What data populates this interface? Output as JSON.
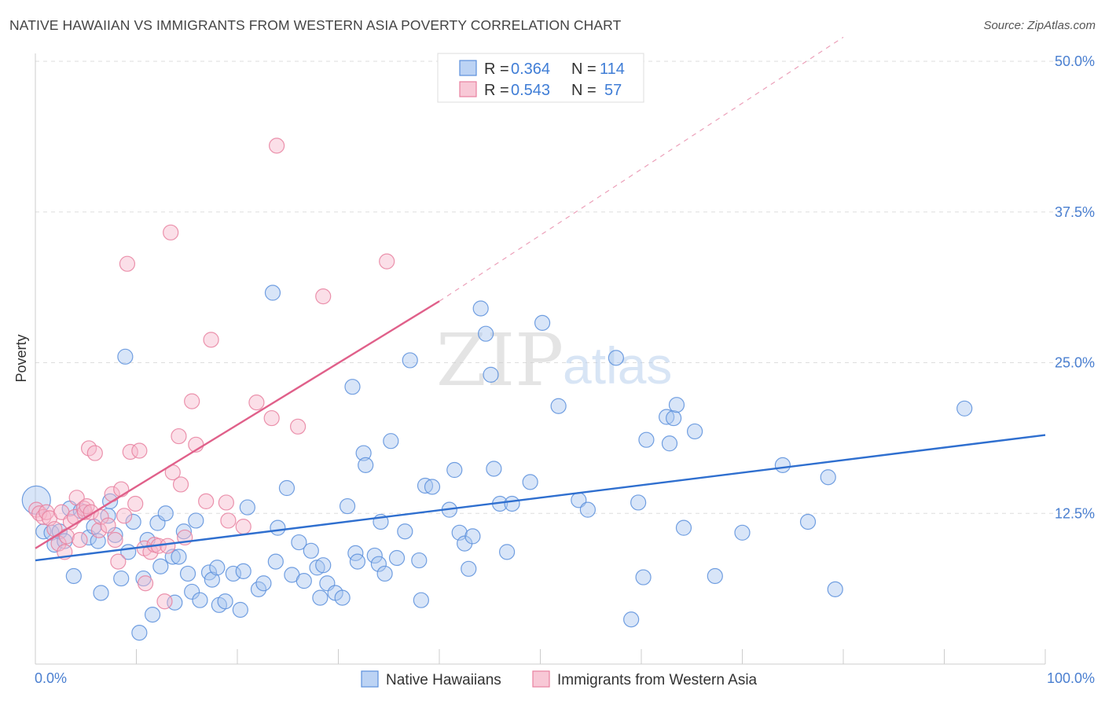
{
  "title": "NATIVE HAWAIIAN VS IMMIGRANTS FROM WESTERN ASIA POVERTY CORRELATION CHART",
  "source": "Source: ZipAtlas.com",
  "watermark": {
    "zip": "ZIP",
    "atlas": "atlas"
  },
  "colors": {
    "blue": "#5b8fdc",
    "blue_fill": "#a9c6f0",
    "blue_line": "#2f6fcf",
    "pink": "#e8809f",
    "pink_fill": "#f6b8cc",
    "pink_line": "#e0608a",
    "tick": "#4a7fd0",
    "grid": "#dddddd"
  },
  "legend": {
    "rows": [
      {
        "r_label": "R = ",
        "r_value": "0.364",
        "n_label": "N = ",
        "n_value": "114",
        "color": "blue"
      },
      {
        "r_label": "R = ",
        "r_value": "0.543",
        "n_label": "N = ",
        "n_value": "57",
        "color": "pink"
      }
    ]
  },
  "chart_data": {
    "type": "scatter",
    "title": "NATIVE HAWAIIAN VS IMMIGRANTS FROM WESTERN ASIA POVERTY CORRELATION CHART",
    "xlabel": "",
    "ylabel": "Poverty",
    "xlim": [
      0,
      100
    ],
    "ylim": [
      0,
      52
    ],
    "x_tick_labels": [
      "0.0%",
      "100.0%"
    ],
    "y_ticks": [
      12.5,
      25.0,
      37.5,
      50.0
    ],
    "y_tick_labels": [
      "12.5%",
      "25.0%",
      "37.5%",
      "50.0%"
    ],
    "grid": true,
    "legend_position": "top-center",
    "series": [
      {
        "name": "Native Hawaiians",
        "color": "blue",
        "trend": {
          "x": [
            0,
            100
          ],
          "y": [
            8.6,
            19.0
          ],
          "dashed_extension": false
        },
        "points": [
          [
            0.1,
            13.6
          ],
          [
            0.8,
            11.0
          ],
          [
            1.6,
            10.9
          ],
          [
            1.9,
            9.9
          ],
          [
            2.4,
            11.0
          ],
          [
            2.9,
            10.2
          ],
          [
            3.4,
            12.9
          ],
          [
            3.8,
            7.3
          ],
          [
            4.5,
            12.7
          ],
          [
            5.3,
            10.5
          ],
          [
            5.8,
            11.4
          ],
          [
            6.2,
            10.2
          ],
          [
            6.5,
            5.9
          ],
          [
            7.2,
            12.3
          ],
          [
            7.4,
            13.5
          ],
          [
            7.9,
            10.7
          ],
          [
            8.5,
            7.1
          ],
          [
            8.9,
            25.5
          ],
          [
            9.2,
            9.3
          ],
          [
            9.7,
            11.8
          ],
          [
            10.3,
            2.6
          ],
          [
            10.7,
            7.1
          ],
          [
            11.1,
            10.3
          ],
          [
            11.6,
            4.1
          ],
          [
            12.1,
            11.7
          ],
          [
            12.4,
            8.1
          ],
          [
            12.9,
            12.5
          ],
          [
            13.6,
            8.9
          ],
          [
            13.8,
            5.1
          ],
          [
            14.2,
            8.9
          ],
          [
            14.7,
            11.0
          ],
          [
            15.1,
            7.5
          ],
          [
            15.5,
            6.0
          ],
          [
            15.9,
            11.9
          ],
          [
            16.3,
            5.3
          ],
          [
            17.2,
            7.6
          ],
          [
            17.5,
            7.0
          ],
          [
            18.0,
            8.0
          ],
          [
            18.2,
            4.9
          ],
          [
            18.8,
            5.2
          ],
          [
            19.6,
            7.5
          ],
          [
            20.3,
            4.5
          ],
          [
            20.6,
            7.7
          ],
          [
            21.0,
            13.0
          ],
          [
            22.1,
            6.2
          ],
          [
            22.6,
            6.7
          ],
          [
            23.5,
            30.8
          ],
          [
            23.8,
            8.5
          ],
          [
            24.0,
            11.3
          ],
          [
            24.9,
            14.6
          ],
          [
            25.4,
            7.4
          ],
          [
            26.1,
            10.1
          ],
          [
            26.6,
            6.9
          ],
          [
            27.3,
            9.4
          ],
          [
            27.9,
            8.0
          ],
          [
            28.2,
            5.5
          ],
          [
            28.5,
            8.2
          ],
          [
            28.9,
            6.7
          ],
          [
            29.7,
            5.9
          ],
          [
            30.4,
            5.5
          ],
          [
            30.9,
            13.1
          ],
          [
            31.4,
            23.0
          ],
          [
            31.7,
            9.2
          ],
          [
            31.9,
            8.5
          ],
          [
            32.5,
            17.5
          ],
          [
            32.7,
            16.5
          ],
          [
            33.6,
            9.0
          ],
          [
            34.0,
            8.3
          ],
          [
            34.2,
            11.8
          ],
          [
            34.6,
            7.5
          ],
          [
            35.2,
            18.5
          ],
          [
            35.8,
            8.8
          ],
          [
            36.6,
            11.0
          ],
          [
            37.1,
            25.2
          ],
          [
            38.0,
            8.6
          ],
          [
            38.2,
            5.3
          ],
          [
            38.6,
            14.8
          ],
          [
            39.3,
            14.7
          ],
          [
            41.0,
            12.8
          ],
          [
            41.5,
            16.1
          ],
          [
            42.0,
            10.9
          ],
          [
            42.5,
            10.0
          ],
          [
            42.9,
            7.9
          ],
          [
            43.3,
            10.6
          ],
          [
            44.1,
            29.5
          ],
          [
            44.6,
            27.4
          ],
          [
            45.1,
            24.0
          ],
          [
            45.4,
            16.2
          ],
          [
            46.0,
            13.3
          ],
          [
            46.7,
            9.3
          ],
          [
            47.2,
            13.3
          ],
          [
            49.0,
            15.1
          ],
          [
            50.2,
            28.3
          ],
          [
            51.8,
            21.4
          ],
          [
            53.8,
            13.6
          ],
          [
            54.7,
            12.8
          ],
          [
            57.5,
            25.4
          ],
          [
            59.0,
            3.7
          ],
          [
            59.7,
            13.4
          ],
          [
            60.2,
            7.2
          ],
          [
            60.5,
            18.6
          ],
          [
            62.5,
            20.5
          ],
          [
            62.8,
            18.3
          ],
          [
            63.2,
            20.4
          ],
          [
            63.5,
            21.5
          ],
          [
            64.2,
            11.3
          ],
          [
            65.3,
            19.3
          ],
          [
            67.3,
            7.3
          ],
          [
            70.0,
            10.9
          ],
          [
            74.0,
            16.5
          ],
          [
            76.5,
            11.8
          ],
          [
            78.5,
            15.5
          ],
          [
            79.2,
            6.2
          ],
          [
            92.0,
            21.2
          ]
        ]
      },
      {
        "name": "Immigrants from Western Asia",
        "color": "pink",
        "trend": {
          "x": [
            0,
            40
          ],
          "y": [
            9.6,
            30.1
          ],
          "dashed_extension": true,
          "extension_to": [
            80,
            52
          ]
        },
        "points": [
          [
            0.1,
            12.8
          ],
          [
            0.4,
            12.5
          ],
          [
            0.8,
            12.2
          ],
          [
            1.1,
            12.6
          ],
          [
            1.4,
            12.1
          ],
          [
            1.9,
            11.2
          ],
          [
            2.3,
            10.0
          ],
          [
            2.6,
            12.6
          ],
          [
            2.9,
            9.3
          ],
          [
            3.1,
            10.6
          ],
          [
            3.5,
            11.8
          ],
          [
            3.9,
            12.2
          ],
          [
            4.1,
            13.8
          ],
          [
            4.4,
            10.3
          ],
          [
            4.8,
            12.9
          ],
          [
            4.9,
            12.6
          ],
          [
            5.1,
            13.1
          ],
          [
            5.3,
            17.9
          ],
          [
            5.5,
            12.6
          ],
          [
            5.9,
            17.5
          ],
          [
            6.3,
            11.1
          ],
          [
            6.5,
            12.2
          ],
          [
            7.2,
            11.5
          ],
          [
            7.6,
            14.1
          ],
          [
            7.9,
            10.3
          ],
          [
            8.2,
            8.5
          ],
          [
            8.5,
            14.5
          ],
          [
            8.8,
            12.3
          ],
          [
            9.1,
            33.2
          ],
          [
            9.4,
            17.6
          ],
          [
            9.9,
            13.3
          ],
          [
            10.3,
            17.7
          ],
          [
            10.8,
            9.6
          ],
          [
            10.9,
            6.7
          ],
          [
            11.4,
            9.3
          ],
          [
            11.8,
            9.9
          ],
          [
            12.2,
            9.8
          ],
          [
            12.8,
            5.2
          ],
          [
            13.1,
            9.8
          ],
          [
            13.4,
            35.8
          ],
          [
            13.6,
            15.9
          ],
          [
            14.2,
            18.9
          ],
          [
            14.4,
            14.9
          ],
          [
            14.8,
            10.5
          ],
          [
            15.5,
            21.8
          ],
          [
            15.9,
            18.2
          ],
          [
            16.9,
            13.5
          ],
          [
            17.4,
            26.9
          ],
          [
            18.9,
            13.4
          ],
          [
            19.1,
            11.9
          ],
          [
            20.6,
            11.4
          ],
          [
            21.9,
            21.7
          ],
          [
            23.4,
            20.4
          ],
          [
            23.9,
            43.0
          ],
          [
            26.0,
            19.7
          ],
          [
            28.5,
            30.5
          ],
          [
            34.8,
            33.4
          ]
        ]
      }
    ]
  },
  "bottom_legend": [
    {
      "label": "Native Hawaiians",
      "color": "blue"
    },
    {
      "label": "Immigrants from Western Asia",
      "color": "pink"
    }
  ]
}
